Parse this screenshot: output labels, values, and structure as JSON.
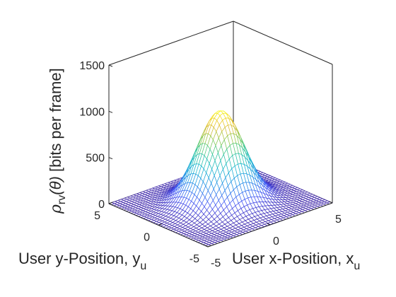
{
  "chart_data": {
    "type": "surface",
    "title": "",
    "xlabel": {
      "text": "User x-Position, x",
      "subscript": "u"
    },
    "ylabel": {
      "text": "User y-Position, y",
      "subscript": "u"
    },
    "zlabel": {
      "rho": "ρ",
      "sub": "rv",
      "arg": "(θ)",
      "units": " [bits per frame]"
    },
    "xlim": [
      -5,
      5
    ],
    "ylim": [
      -5,
      5
    ],
    "zlim": [
      0,
      1500
    ],
    "xticks": [
      -5,
      0,
      5
    ],
    "yticks": [
      -5,
      0,
      5
    ],
    "zticks": [
      0,
      500,
      1000,
      1500
    ],
    "xtick_labels": [
      "-5",
      "0",
      "5"
    ],
    "ytick_labels": [
      "-5",
      "0",
      "5"
    ],
    "ztick_labels": [
      "0",
      "500",
      "1000",
      "1500"
    ],
    "surface": {
      "function": "gaussian",
      "peak_value": 1000,
      "center_x": 0,
      "center_y": 0,
      "sigma": 1.5,
      "grid_points": 41,
      "colormap": "parula"
    },
    "grid": false,
    "box": true
  }
}
